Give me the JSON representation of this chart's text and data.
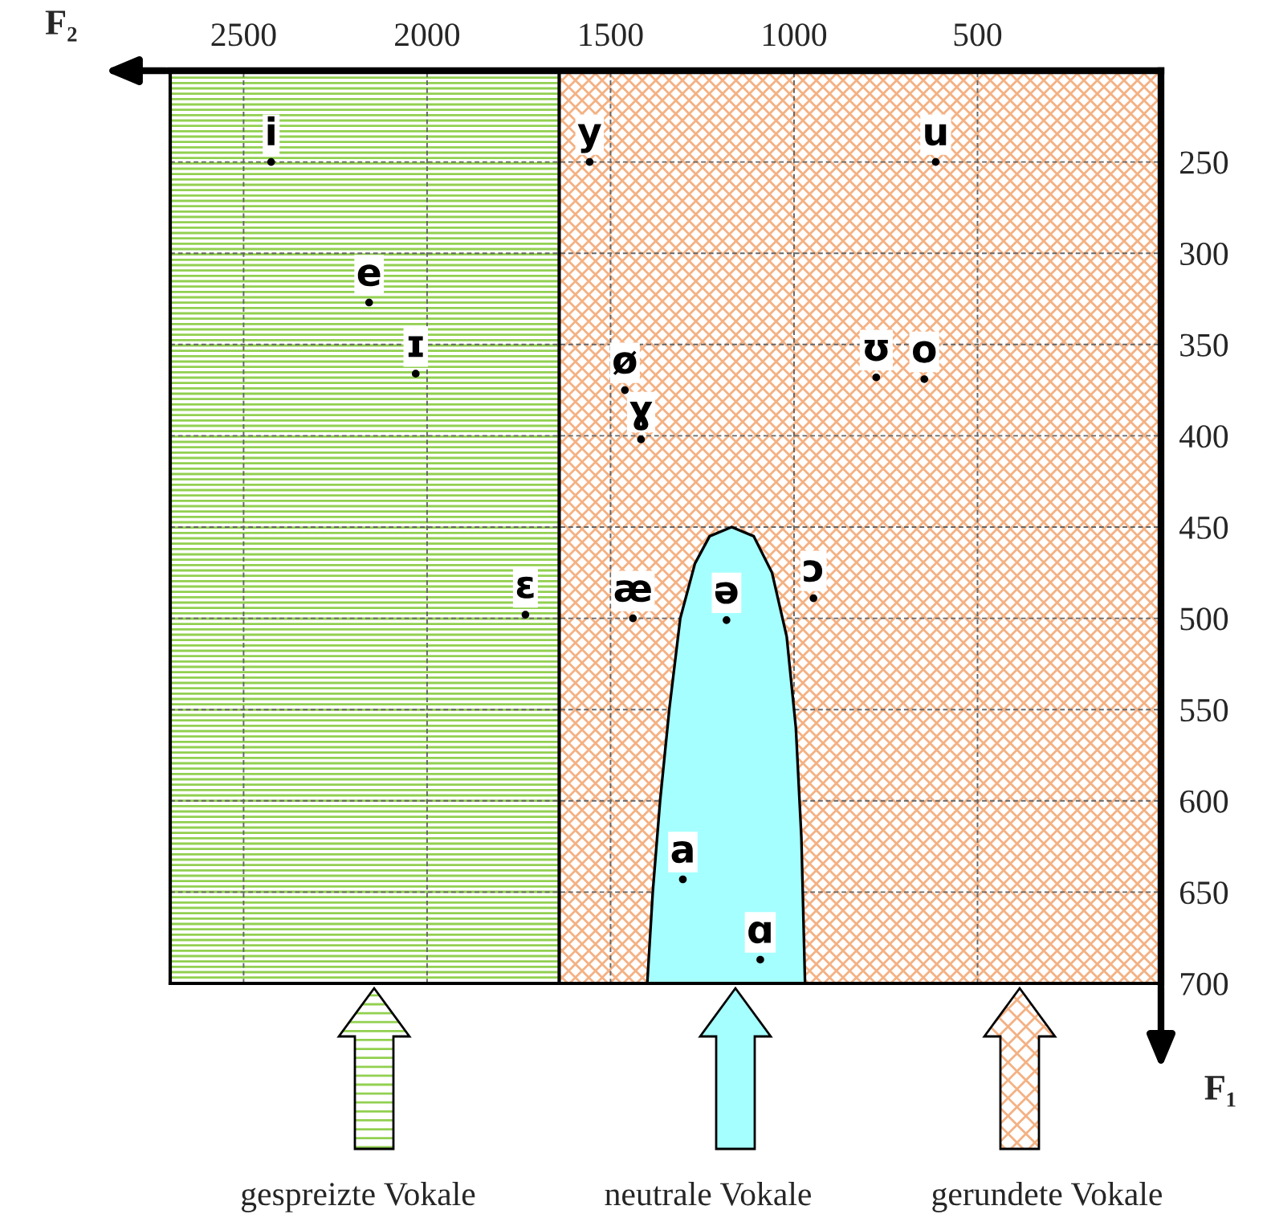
{
  "chart_data": {
    "type": "scatter",
    "xlabel": "F₂",
    "ylabel": "F₁",
    "xlim": [
      2700,
      0
    ],
    "ylim": [
      700,
      200
    ],
    "xticks": [
      2500,
      2000,
      1500,
      1000,
      500
    ],
    "yticks": [
      250,
      300,
      350,
      400,
      450,
      500,
      550,
      600,
      650,
      700
    ],
    "grid": true,
    "bands": [
      {
        "axis": "x",
        "from": 2700,
        "to": 1640,
        "color": "#92d050"
      },
      {
        "axis": "x",
        "from": 1640,
        "to": 0,
        "color": "#f4b183"
      }
    ],
    "ref_lines": [
      {
        "axis": "x",
        "value": 1640,
        "color": "#000000"
      }
    ],
    "series": [
      {
        "type": "area",
        "color": "#a6ffff",
        "x": [
          1400,
          1385,
          1365,
          1340,
          1310,
          1270,
          1230,
          1170,
          1110,
          1060,
          1020,
          995,
          980,
          970
        ],
        "values": [
          700,
          650,
          600,
          550,
          500,
          470,
          455,
          450,
          455,
          475,
          510,
          560,
          620,
          700
        ]
      },
      {
        "color": "#000000",
        "marker": "circle",
        "x": [
          2425,
          1557,
          614,
          2158,
          2031,
          1461,
          1417,
          776,
          645,
          1732,
          1439,
          1184,
          947,
          1303,
          1092
        ],
        "values": [
          250,
          250,
          250,
          327,
          366,
          375,
          402,
          368,
          369,
          498,
          500,
          501,
          489,
          643,
          687
        ],
        "value_labels": [
          "i",
          "y",
          "u",
          "e",
          "ɪ",
          "ø",
          "ɣ",
          "ʊ",
          "o",
          "ɛ",
          "æ",
          "ə",
          "ɔ",
          "a",
          "ɑ"
        ]
      }
    ],
    "annotations": [
      "gespreizte Vokale",
      "neutrale Vokale",
      "gerundete Vokale"
    ]
  }
}
